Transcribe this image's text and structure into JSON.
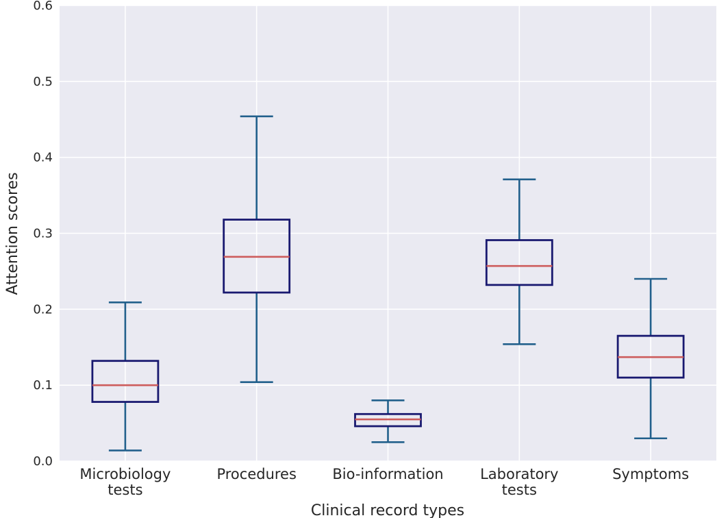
{
  "chart_data": {
    "type": "box",
    "title": "",
    "xlabel": "Clinical record types",
    "ylabel": "Attention scores",
    "ylim": [
      0.0,
      0.6
    ],
    "yticks": [
      "0.0",
      "0.1",
      "0.2",
      "0.3",
      "0.4",
      "0.5",
      "0.6"
    ],
    "grid": true,
    "categories": [
      {
        "line1": "Microbiology",
        "line2": "tests"
      },
      {
        "line1": "Procedures",
        "line2": ""
      },
      {
        "line1": "Bio-information",
        "line2": ""
      },
      {
        "line1": "Laboratory",
        "line2": "tests"
      },
      {
        "line1": "Symptoms",
        "line2": ""
      }
    ],
    "boxes": [
      {
        "whisker_low": 0.014,
        "q1": 0.078,
        "median": 0.1,
        "q3": 0.132,
        "whisker_high": 0.209
      },
      {
        "whisker_low": 0.104,
        "q1": 0.222,
        "median": 0.269,
        "q3": 0.318,
        "whisker_high": 0.454
      },
      {
        "whisker_low": 0.025,
        "q1": 0.046,
        "median": 0.055,
        "q3": 0.062,
        "whisker_high": 0.08
      },
      {
        "whisker_low": 0.154,
        "q1": 0.232,
        "median": 0.257,
        "q3": 0.291,
        "whisker_high": 0.371
      },
      {
        "whisker_low": 0.03,
        "q1": 0.11,
        "median": 0.137,
        "q3": 0.165,
        "whisker_high": 0.24
      }
    ],
    "colors": {
      "background": "#EAEAF2",
      "grid": "#FFFFFF",
      "box": "#191970",
      "whisker": "#22608C",
      "median": "#CD5C5C"
    }
  }
}
